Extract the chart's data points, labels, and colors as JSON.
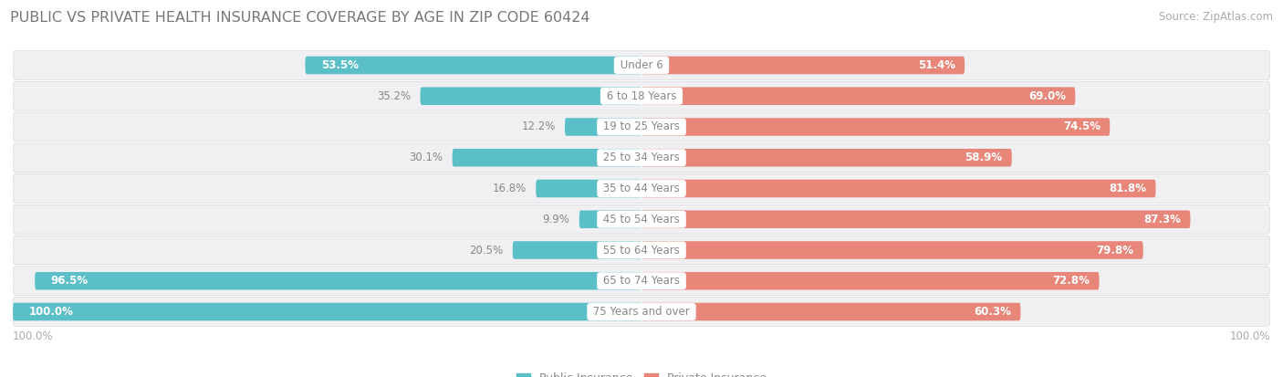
{
  "title": "PUBLIC VS PRIVATE HEALTH INSURANCE COVERAGE BY AGE IN ZIP CODE 60424",
  "source": "Source: ZipAtlas.com",
  "categories": [
    "Under 6",
    "6 to 18 Years",
    "19 to 25 Years",
    "25 to 34 Years",
    "35 to 44 Years",
    "45 to 54 Years",
    "55 to 64 Years",
    "65 to 74 Years",
    "75 Years and over"
  ],
  "public_values": [
    53.5,
    35.2,
    12.2,
    30.1,
    16.8,
    9.9,
    20.5,
    96.5,
    100.0
  ],
  "private_values": [
    51.4,
    69.0,
    74.5,
    58.9,
    81.8,
    87.3,
    79.8,
    72.8,
    60.3
  ],
  "public_color": "#5bbfc8",
  "private_color": "#e8867a",
  "private_color_light": "#f0a89e",
  "bar_height": 0.58,
  "row_bg_color": "#f0f0f2",
  "row_border_color": "#d8d8dc",
  "center_label_color": "#888888",
  "label_inside_color": "#ffffff",
  "label_outside_color": "#888888",
  "max_value": 100.0,
  "legend_public": "Public Insurance",
  "legend_private": "Private Insurance",
  "title_fontsize": 11.5,
  "label_fontsize": 8.5,
  "source_fontsize": 8.5,
  "legend_fontsize": 9,
  "title_color": "#777777",
  "source_color": "#aaaaaa"
}
